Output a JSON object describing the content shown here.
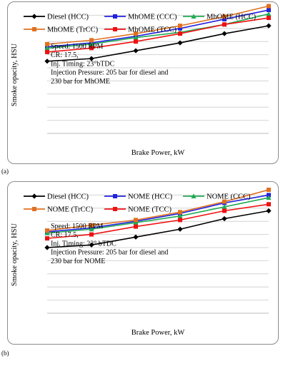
{
  "chart_data": [
    {
      "type": "line",
      "panel_label": "(a)",
      "xlabel": "Brake Power, kW",
      "ylabel": "Smoke opacity, HSU",
      "x": [
        1,
        2,
        3,
        4,
        5,
        6
      ],
      "ylim": [
        0,
        10
      ],
      "grid": "horizontal",
      "legend_position": "top",
      "series": [
        {
          "name": "Diesel (HCC)",
          "color": "#000000",
          "marker": "diamond",
          "values": [
            5.5,
            5.7,
            6.3,
            6.9,
            7.6,
            8.2
          ]
        },
        {
          "name": "MhOME (CCC)",
          "color": "#2222dd",
          "marker": "square",
          "values": [
            6.6,
            6.9,
            7.4,
            8.0,
            8.7,
            9.4
          ]
        },
        {
          "name": "MhOME  (HCC)",
          "color": "#22aa55",
          "marker": "triangle",
          "values": [
            6.5,
            6.8,
            7.3,
            7.7,
            8.3,
            9.1
          ]
        },
        {
          "name": "MhOME (TrCC)",
          "color": "#e07020",
          "marker": "square",
          "values": [
            6.8,
            7.1,
            7.6,
            8.2,
            8.9,
            9.7
          ]
        },
        {
          "name": "MhOME (TCC)",
          "color": "#ee1111",
          "marker": "square",
          "values": [
            6.2,
            6.5,
            7.0,
            7.6,
            8.3,
            8.8
          ]
        }
      ],
      "annotation": [
        "Speed: 1500 RPM",
        "CR: 17.5,",
        "Inj. Timing: 23°bTDC",
        "Injection Pressure: 205 bar for diesel and",
        "230 bar for MhOME"
      ]
    },
    {
      "type": "line",
      "panel_label": "(b)",
      "xlabel": "Brake Power, kW",
      "ylabel": "Smoke opacity, HSU",
      "x": [
        1,
        2,
        3,
        4,
        5,
        6
      ],
      "ylim": [
        0,
        10
      ],
      "grid": "horizontal",
      "legend_position": "top",
      "series": [
        {
          "name": "Diesel (HCC)",
          "color": "#000000",
          "marker": "diamond",
          "values": [
            5.0,
            5.2,
            5.8,
            6.4,
            7.2,
            7.8
          ]
        },
        {
          "name": "NOME (HCC)",
          "color": "#2222dd",
          "marker": "square",
          "values": [
            6.2,
            6.5,
            7.0,
            7.6,
            8.4,
            9.0
          ]
        },
        {
          "name": "NOME  (CCC)",
          "color": "#22aa55",
          "marker": "triangle",
          "values": [
            6.1,
            6.4,
            6.9,
            7.4,
            8.1,
            8.8
          ]
        },
        {
          "name": "NOME (TrCC)",
          "color": "#e07020",
          "marker": "square",
          "values": [
            6.3,
            6.7,
            7.1,
            7.7,
            8.5,
            9.4
          ]
        },
        {
          "name": "NOME (TCC)",
          "color": "#ee1111",
          "marker": "square",
          "values": [
            5.7,
            6.0,
            6.6,
            7.1,
            7.8,
            8.3
          ]
        }
      ],
      "annotation": [
        "Speed: 1500 RPM",
        "CR: 17.5,",
        "Inj. Timing: 23° bTDC",
        "Injection Pressure: 205 bar for diesel and",
        "230 bar for NOME"
      ]
    }
  ]
}
